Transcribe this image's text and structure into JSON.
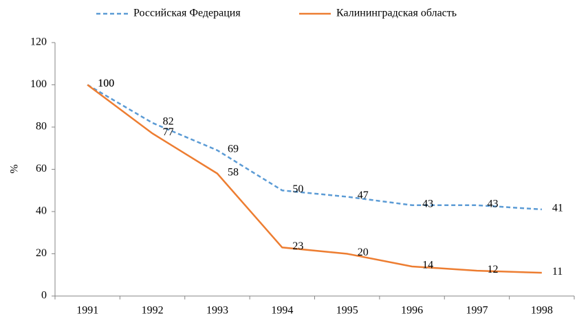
{
  "chart_data": {
    "type": "line",
    "y_label": "%",
    "categories": [
      "1991",
      "1992",
      "1993",
      "1994",
      "1995",
      "1996",
      "1997",
      "1998"
    ],
    "series": [
      {
        "name": "Российская Федерация",
        "color": "#5b9bd5",
        "dashed": true,
        "values": [
          100,
          82,
          69,
          50,
          47,
          43,
          43,
          41
        ]
      },
      {
        "name": "Калининградская область",
        "color": "#ed7d31",
        "dashed": false,
        "values": [
          100,
          77,
          58,
          23,
          20,
          14,
          12,
          11
        ]
      }
    ],
    "ylim": [
      0,
      120
    ],
    "yticks": [
      0,
      20,
      40,
      60,
      80,
      100,
      120
    ],
    "grid": false,
    "legend": "top"
  }
}
